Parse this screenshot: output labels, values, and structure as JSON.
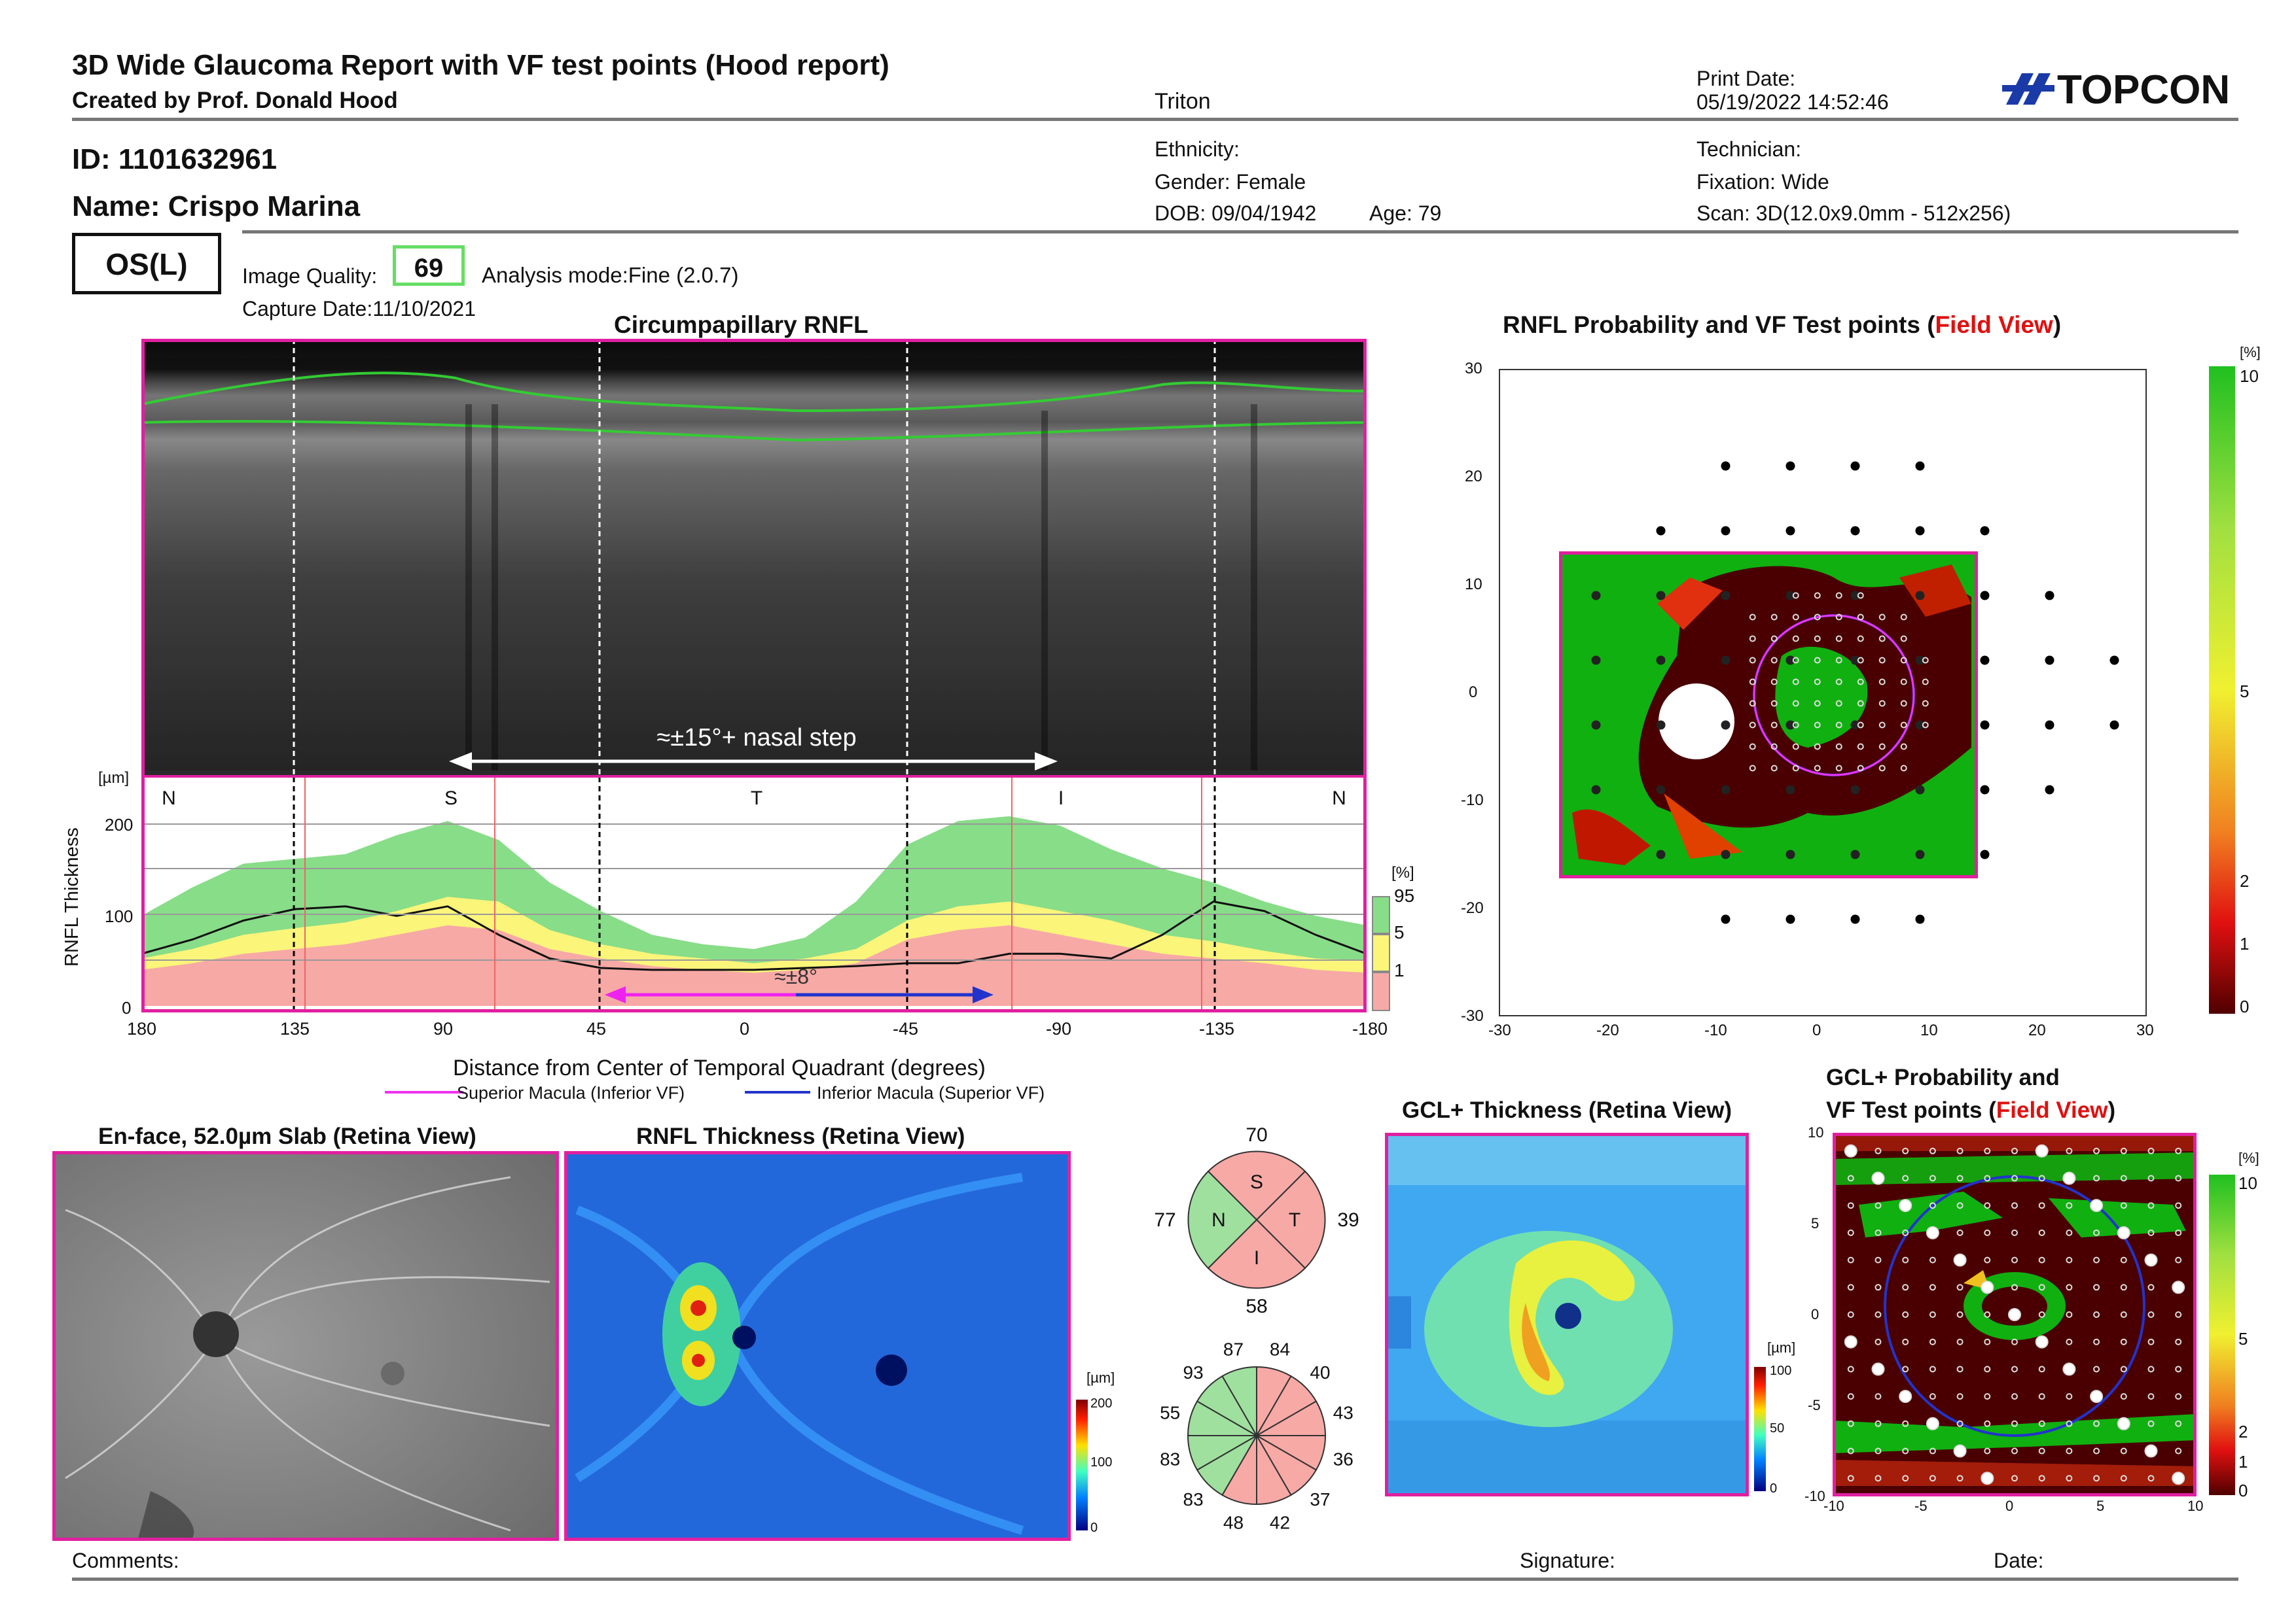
{
  "header": {
    "title": "3D Wide Glaucoma Report with VF test points (Hood report)",
    "subtitle": "Created by Prof. Donald Hood",
    "device": "Triton",
    "print_date_label": "Print Date:",
    "print_date": "05/19/2022 14:52:46",
    "logo": "TOPCON"
  },
  "patient": {
    "id": "ID: 1101632961",
    "name": "Name: Crispo Marina",
    "ethnicity": "Ethnicity:",
    "gender": "Gender: Female",
    "dob": "DOB: 09/04/1942",
    "age": "Age: 79",
    "technician": "Technician:",
    "fixation": "Fixation: Wide",
    "scan": "Scan: 3D(12.0x9.0mm - 512x256)"
  },
  "exam": {
    "eye": "OS(L)",
    "image_quality_label": "Image Quality:",
    "image_quality": "69",
    "analysis_mode": "Analysis mode:Fine (2.0.7)",
    "capture_date": "Capture Date:11/10/2021"
  },
  "colors": {
    "frame": "#e020a0",
    "green": "#88dd88",
    "yellow": "#fbf57a",
    "red": "#f7a9a6",
    "dark_red": "#5a0000",
    "blue_line": "#2233cc",
    "magenta_line": "#ee33ee"
  },
  "rnfl": {
    "title": "Circumpapillary RNFL",
    "annotation": "≈±15°+ nasal step",
    "annotation2": "≈±8°",
    "quadrants": [
      "N",
      "S",
      "T",
      "I",
      "N"
    ],
    "y_unit": "[µm]",
    "y_label": "RNFL Thickness",
    "x_label": "Distance from Center of Temporal Quadrant (degrees)",
    "legend_superior": "Superior Macula (Inferior VF)",
    "legend_inferior": "Inferior Macula (Superior VF)",
    "pct_unit": "[%]",
    "pct_labels": [
      "95",
      "5",
      "1"
    ]
  },
  "chart_data": {
    "type": "area",
    "x": [
      180,
      165,
      150,
      135,
      120,
      105,
      90,
      75,
      60,
      45,
      30,
      15,
      0,
      -15,
      -30,
      -45,
      -60,
      -75,
      -90,
      -105,
      -120,
      -135,
      -150,
      -165,
      -180
    ],
    "x_ticks": [
      "180",
      "135",
      "90",
      "45",
      "0",
      "-45",
      "-90",
      "-135",
      "-180"
    ],
    "y_ticks": [
      "0",
      "100",
      "200"
    ],
    "ylim": [
      0,
      240
    ],
    "xlim": [
      180,
      -180
    ],
    "series": [
      {
        "name": "95",
        "values": [
          95,
          125,
          150,
          155,
          160,
          180,
          195,
          175,
          130,
          100,
          75,
          65,
          60,
          72,
          110,
          170,
          195,
          200,
          190,
          165,
          145,
          130,
          110,
          95,
          85
        ]
      },
      {
        "name": "5",
        "values": [
          50,
          60,
          75,
          82,
          88,
          100,
          115,
          110,
          80,
          65,
          55,
          50,
          45,
          50,
          60,
          90,
          105,
          110,
          100,
          90,
          75,
          68,
          58,
          50,
          48
        ]
      },
      {
        "name": "1",
        "values": [
          38,
          45,
          55,
          60,
          65,
          75,
          85,
          80,
          60,
          50,
          42,
          38,
          35,
          38,
          45,
          70,
          80,
          85,
          75,
          65,
          55,
          50,
          45,
          38,
          35
        ]
      },
      {
        "values": [
          55,
          70,
          90,
          102,
          105,
          95,
          105,
          75,
          50,
          40,
          38,
          38,
          38,
          40,
          42,
          45,
          45,
          55,
          55,
          50,
          75,
          110,
          100,
          75,
          55
        ]
      }
    ]
  },
  "prob_map": {
    "title_pre": "RNFL Probability and VF Test points (",
    "title_red": "Field View",
    "title_post": ")",
    "y_ticks": [
      "30",
      "20",
      "10",
      "0",
      "-10",
      "-20",
      "-30"
    ],
    "x_ticks": [
      "-30",
      "-20",
      "-10",
      "0",
      "10",
      "20",
      "30"
    ],
    "scale_unit": "[%]",
    "scale_labels": [
      "10",
      "5",
      "2",
      "1",
      "0"
    ]
  },
  "enface": {
    "title": "En-face, 52.0µm Slab (Retina View)"
  },
  "rnfl_map": {
    "title": "RNFL Thickness (Retina View)",
    "unit": "[µm]",
    "scale_labels": [
      "200",
      "100",
      "0"
    ]
  },
  "sectors": {
    "quadrant_values": {
      "top": "70",
      "left": "77",
      "right": "39",
      "bottom": "58"
    },
    "quadrant_letters": [
      "S",
      "N",
      "T",
      "I"
    ],
    "clock_values": [
      "84",
      "40",
      "43",
      "36",
      "37",
      "42",
      "48",
      "83",
      "83",
      "55",
      "93",
      "87"
    ]
  },
  "gcl_map": {
    "title": "GCL+ Thickness (Retina View)",
    "unit": "[µm]",
    "scale_labels": [
      "100",
      "50",
      "0"
    ]
  },
  "gcl_prob": {
    "title_line1": "GCL+ Probability and",
    "title_pre": "VF Test points (",
    "title_red": "Field View",
    "title_post": ")",
    "y_ticks": [
      "10",
      "5",
      "0",
      "-5",
      "-10"
    ],
    "x_ticks": [
      "-10",
      "-5",
      "0",
      "5",
      "10"
    ],
    "scale_unit": "[%]",
    "scale_labels": [
      "10",
      "5",
      "2",
      "1",
      "0"
    ]
  },
  "footer": {
    "comments": "Comments:",
    "signature": "Signature:",
    "date": "Date:"
  }
}
